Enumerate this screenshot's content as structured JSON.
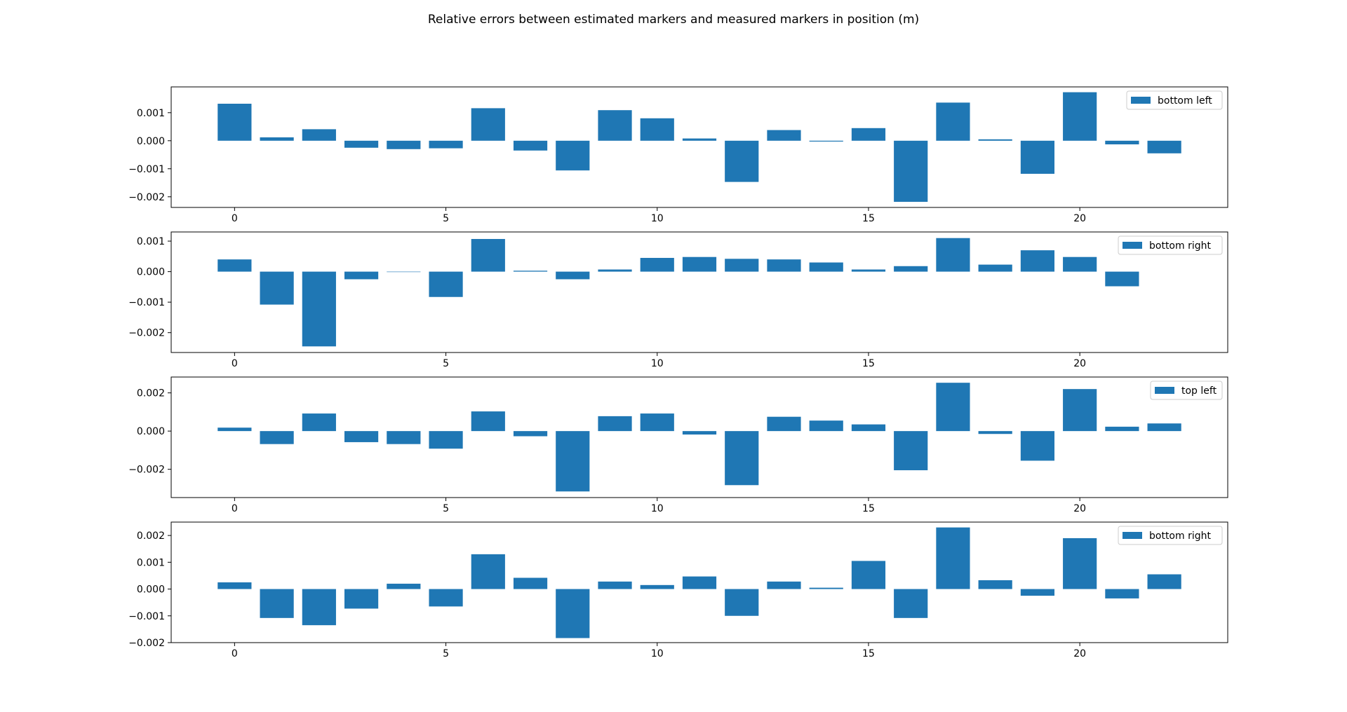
{
  "figure_title": "Relative errors between estimated markers and measured markers in position (m)",
  "colors": {
    "bar": "#1f77b4",
    "axis": "#000000",
    "legend_border": "#cccccc"
  },
  "chart_data": [
    {
      "type": "bar",
      "legend": "bottom left",
      "legend_loc": "upper right",
      "x": [
        0,
        1,
        2,
        3,
        4,
        5,
        6,
        7,
        8,
        9,
        10,
        11,
        12,
        13,
        14,
        15,
        16,
        17,
        18,
        19,
        20,
        21,
        22
      ],
      "values": [
        0.00132,
        0.00012,
        0.00041,
        -0.00025,
        -0.0003,
        -0.00027,
        0.00116,
        -0.00035,
        -0.00106,
        0.00109,
        0.0008,
        8e-05,
        -0.00147,
        0.00038,
        -3e-05,
        0.00045,
        -0.00218,
        0.00136,
        5e-05,
        -0.00118,
        0.00173,
        -0.00013,
        -0.00045
      ],
      "xticks": [
        0,
        5,
        10,
        15,
        20
      ],
      "yticks": [
        0.001,
        0.0,
        -0.001,
        -0.002
      ],
      "ytick_labels": [
        "0.001",
        "0.000",
        "−0.001",
        "−0.002"
      ],
      "xlim": [
        -1.5,
        23.5
      ],
      "ylim": [
        -0.00238,
        0.00192
      ]
    },
    {
      "type": "bar",
      "legend": "bottom right",
      "legend_loc": "upper right",
      "x": [
        0,
        1,
        2,
        3,
        4,
        5,
        6,
        7,
        8,
        9,
        10,
        11,
        12,
        13,
        14,
        15,
        16,
        17,
        18,
        19,
        20,
        21
      ],
      "values": [
        0.0004,
        -0.00108,
        -0.00245,
        -0.00025,
        0.0,
        -0.00083,
        0.00107,
        3e-05,
        -0.00025,
        7e-05,
        0.00045,
        0.00048,
        0.00042,
        0.0004,
        0.0003,
        7e-05,
        0.00018,
        0.0011,
        0.00023,
        0.0007,
        0.00048,
        -0.00048
      ],
      "xticks": [
        0,
        5,
        10,
        15,
        20
      ],
      "yticks": [
        0.001,
        0.0,
        -0.001,
        -0.002
      ],
      "ytick_labels": [
        "0.001",
        "0.000",
        "−0.001",
        "−0.002"
      ],
      "xlim": [
        -1.5,
        23.5
      ],
      "ylim": [
        -0.00265,
        0.0013
      ]
    },
    {
      "type": "bar",
      "legend": "top left",
      "legend_loc": "upper right",
      "x": [
        0,
        1,
        2,
        3,
        4,
        5,
        6,
        7,
        8,
        9,
        10,
        11,
        12,
        13,
        14,
        15,
        16,
        17,
        18,
        19,
        20,
        21,
        22
      ],
      "values": [
        0.00018,
        -0.00068,
        0.00092,
        -0.00058,
        -0.00068,
        -0.00092,
        0.00103,
        -0.00027,
        -0.00316,
        0.00078,
        0.00092,
        -0.00018,
        -0.00283,
        0.00075,
        0.00055,
        0.00035,
        -0.00205,
        0.00253,
        -0.00015,
        -0.00155,
        0.0022,
        0.00023,
        0.0004
      ],
      "xticks": [
        0,
        5,
        10,
        15,
        20
      ],
      "yticks": [
        0.002,
        0.0,
        -0.002
      ],
      "ytick_labels": [
        "0.002",
        "0.000",
        "−0.002"
      ],
      "xlim": [
        -1.5,
        23.5
      ],
      "ylim": [
        -0.00348,
        0.00283
      ]
    },
    {
      "type": "bar",
      "legend": "bottom right",
      "legend_loc": "upper right",
      "x": [
        0,
        1,
        2,
        3,
        4,
        5,
        6,
        7,
        8,
        9,
        10,
        11,
        12,
        13,
        14,
        15,
        16,
        17,
        18,
        19,
        20,
        21,
        22
      ],
      "values": [
        0.00025,
        -0.00108,
        -0.00135,
        -0.00073,
        0.0002,
        -0.00065,
        0.0013,
        0.00042,
        -0.00183,
        0.00028,
        0.00015,
        0.00047,
        -0.001,
        0.00028,
        5e-05,
        0.00105,
        -0.00108,
        0.0023,
        0.00033,
        -0.00025,
        0.0019,
        -0.00035,
        0.00055
      ],
      "xticks": [
        0,
        5,
        10,
        15,
        20
      ],
      "yticks": [
        0.002,
        0.001,
        0.0,
        -0.001,
        -0.002
      ],
      "ytick_labels": [
        "0.002",
        "0.001",
        "0.000",
        "−0.001",
        "−0.002"
      ],
      "xlim": [
        -1.5,
        23.5
      ],
      "ylim": [
        -0.002,
        0.0025
      ]
    }
  ]
}
